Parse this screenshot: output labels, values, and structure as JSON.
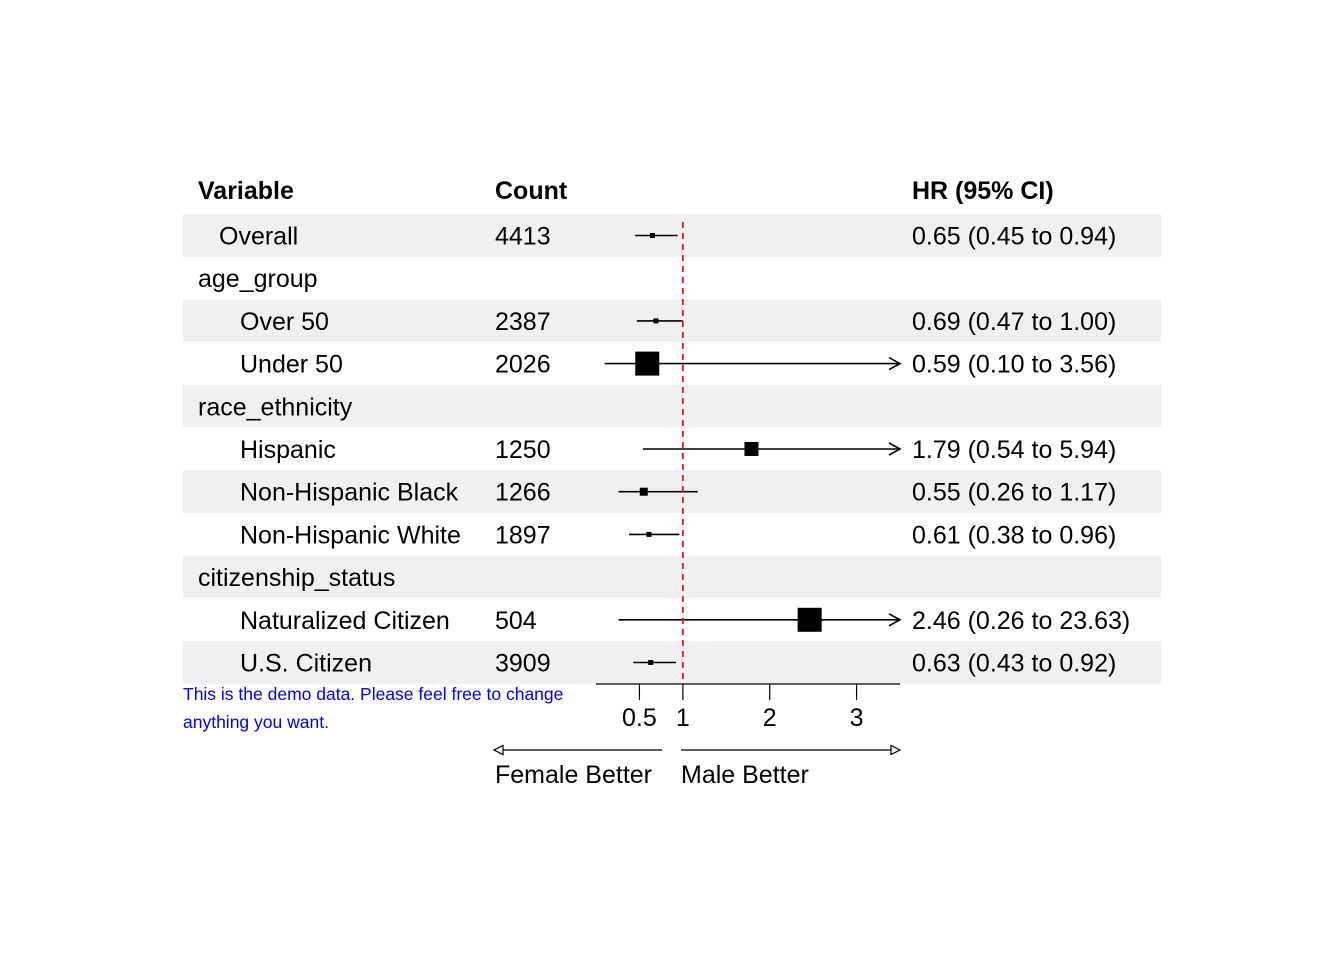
{
  "chart_data": {
    "type": "forest",
    "columns": {
      "variable": "Variable",
      "count": "Count",
      "estimate": "HR (95% CI)"
    },
    "rows": [
      {
        "label": "Overall",
        "indent": 1,
        "count": "4413",
        "hr": 0.65,
        "lower": 0.45,
        "upper": 0.94,
        "ci_text": "0.65 (0.45 to 0.94)",
        "box": "small"
      },
      {
        "label": "age_group",
        "indent": 0,
        "count": "",
        "header": true
      },
      {
        "label": "Over 50",
        "indent": 2,
        "count": "2387",
        "hr": 0.69,
        "lower": 0.47,
        "upper": 1.0,
        "ci_text": "0.69 (0.47 to 1.00)",
        "box": "small"
      },
      {
        "label": "Under 50",
        "indent": 2,
        "count": "2026",
        "hr": 0.59,
        "lower": 0.1,
        "upper": 3.56,
        "ci_text": "0.59 (0.10 to 3.56)",
        "box": "large"
      },
      {
        "label": "race_ethnicity",
        "indent": 0,
        "count": "",
        "header": true
      },
      {
        "label": "Hispanic",
        "indent": 2,
        "count": "1250",
        "hr": 1.79,
        "lower": 0.54,
        "upper": 5.94,
        "ci_text": "1.79 (0.54 to 5.94)",
        "box": "medium",
        "arrow_right": true
      },
      {
        "label": "Non-Hispanic Black",
        "indent": 2,
        "count": "1266",
        "hr": 0.55,
        "lower": 0.26,
        "upper": 1.17,
        "ci_text": "0.55 (0.26 to 1.17)",
        "box": "small-medium"
      },
      {
        "label": "Non-Hispanic White",
        "indent": 2,
        "count": "1897",
        "hr": 0.61,
        "lower": 0.38,
        "upper": 0.96,
        "ci_text": "0.61 (0.38 to 0.96)",
        "box": "small"
      },
      {
        "label": "citizenship_status",
        "indent": 0,
        "count": "",
        "header": true
      },
      {
        "label": "Naturalized Citizen",
        "indent": 2,
        "count": "504",
        "hr": 2.46,
        "lower": 0.26,
        "upper": 23.63,
        "ci_text": "2.46 (0.26 to 23.63)",
        "box": "large",
        "arrow_right": true
      },
      {
        "label": "U.S. Citizen",
        "indent": 2,
        "count": "3909",
        "hr": 0.63,
        "lower": 0.43,
        "upper": 0.92,
        "ci_text": "0.63 (0.43 to 0.92)",
        "box": "small"
      }
    ],
    "x_axis": {
      "ticks": [
        0.5,
        1,
        2,
        3
      ],
      "tick_labels": [
        "0.5",
        "1",
        "2",
        "3"
      ],
      "xlim": [
        0,
        3.5
      ],
      "reference_line": 1
    },
    "direction_labels": {
      "left": "Female Better",
      "right": "Male Better"
    },
    "colors": {
      "band": "#eff1f0",
      "reference_line": "#e41a1c",
      "marks": "#000000"
    }
  },
  "footnote": "This is the demo data. Please feel free to change anything you want."
}
